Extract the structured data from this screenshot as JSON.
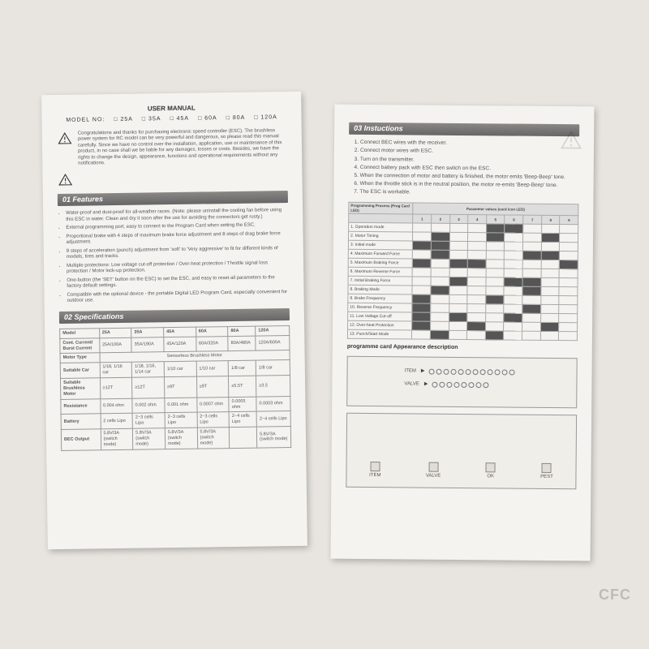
{
  "left": {
    "title": "USER MANUAL",
    "models": [
      "MODEL NO:",
      "□ 25A",
      "□ 35A",
      "□ 45A",
      "□ 60A",
      "□ 80A",
      "□ 120A"
    ],
    "intro1": "Congratulations and thanks for purchasing electronic speed controller (ESC). The brushless power system for RC model can be very powerful and dangerous, so please read this manual carefully. Since we have no control over the installation, application, use or maintenance of this product, in no case shall we be liable for any damages, losses or costs. Besides, we have the rights to change the design, appearance, functions and operational requirements without any notifications.",
    "section1": "01 Features",
    "features": [
      "Water-proof and dust-proof for all-weather races. (Note: please uninstall the cooling fan before using this ESC in water. Clean and dry it soon after the use for avoiding the connectors get rusty.)",
      "External programming port, easy to connect to the Program Card when setting the ESC.",
      "Proportional brake with 4 steps of maximum brake force adjustment and 8 steps of drag brake force adjustment.",
      "9 steps of acceleration (punch) adjustment from 'soft' to 'Very aggressive' to fit for different kinds of models, tires and tracks.",
      "Multiple protections: Low voltage cut-off protection / Over-heat protection / Throttle signal loss protection / Motor lock-up protection.",
      "One-button (the 'SET' button on the ESC) to set the ESC, and easy to reset all parameters to the factory default settings.",
      "Compatible with the optional device - the portable Digital LED Program Card, especially convenient for outdoor use."
    ],
    "section2": "02 Specifications",
    "spec": {
      "headers": [
        "Model",
        "25A",
        "35A",
        "45A",
        "60A",
        "80A",
        "120A"
      ],
      "rows": [
        {
          "label": "Cont. Current/\nBurst Current",
          "cells": [
            "25A/100A",
            "35A/190A",
            "45A/120A",
            "60A/320A",
            "80A/480A",
            "120A/600A"
          ]
        },
        {
          "label": "Motor Type",
          "span": "Sensorless Brushless Motor"
        },
        {
          "label": "Suitable Car",
          "cells": [
            "1/18, 1/16 car",
            "1/18, 1/16, 1/14 car",
            "1/10 car",
            "1/10 car",
            "1/8 car",
            "1/8 car"
          ]
        },
        {
          "label": "Suitable Brushless Motor",
          "cells": [
            "≥12T",
            "≥12T",
            "≥9T",
            "≥9T",
            "≥5.5T",
            "≥3.5"
          ]
        },
        {
          "label": "Resistance",
          "cells": [
            "0.004 ohm",
            "0.002 ohm",
            "0.001 ohm",
            "0.0007 ohm",
            "0.0005 ohm",
            "0.0003 ohm"
          ]
        },
        {
          "label": "Battery",
          "cells": [
            "2 cells Lipo",
            "2~3 cells Lipo",
            "2~3 cells Lipo",
            "2~3 cells Lipo",
            "2~4 cells Lipo",
            "2~4 cells Lipo"
          ]
        },
        {
          "label": "BEC Output",
          "cells": [
            "5.8V/3A\n(switch mode)",
            "5.8V/3A\n(switch mode)",
            "5.8V/3A\n(switch mode)",
            "5.8V/3A\n(switch mode)",
            "",
            "5.8V/3A\n(switch mode)"
          ]
        }
      ]
    }
  },
  "right": {
    "section3": "03 Instuctions",
    "instructions": [
      "Connect BEC wires with the receiver.",
      "Connect motor wires with ESC.",
      "Turn on the transmitter.",
      "Connect battery pack with ESC then switch on the ESC.",
      "When the connection of motor and battery is finished, the motor emits 'Beep-Beep' tone.",
      "When the throttle stick is in the neutral position, the motor re-emits 'Beep-Beep' tone.",
      "The ESC is workable."
    ],
    "progHeader": [
      "Programming Process\n(Prog Card LED)",
      "Parameter values (card icon LED)"
    ],
    "progCols": [
      "1",
      "2",
      "3",
      "4",
      "5",
      "6",
      "7",
      "8",
      "9"
    ],
    "progRows": [
      "1. Operation mode",
      "2. Motor Timing",
      "3. Initial mode",
      "4. Maximum Forward Force",
      "5. Maximum Braking Force",
      "6. Maximum Reverse Force",
      "7. Initial Braking Force",
      "8. Braking Mode",
      "9. Brake Frequency",
      "10. Reverse Frequency",
      "11. Low Voltage Cut-off",
      "12. Over-heat Protection",
      "13. Punch/Start Mode"
    ],
    "progCaption": "programme card Appearance description",
    "cardLabels": {
      "item": "ITEM",
      "valve": "VALVE"
    },
    "btns": [
      "ITEM",
      "VALVE",
      "OK",
      "PEST"
    ]
  },
  "watermark": "CFC",
  "colors": {
    "bg": "#e8e5e0",
    "paper": "#f5f3f0",
    "bar": "#7a7775",
    "border": "#999"
  }
}
